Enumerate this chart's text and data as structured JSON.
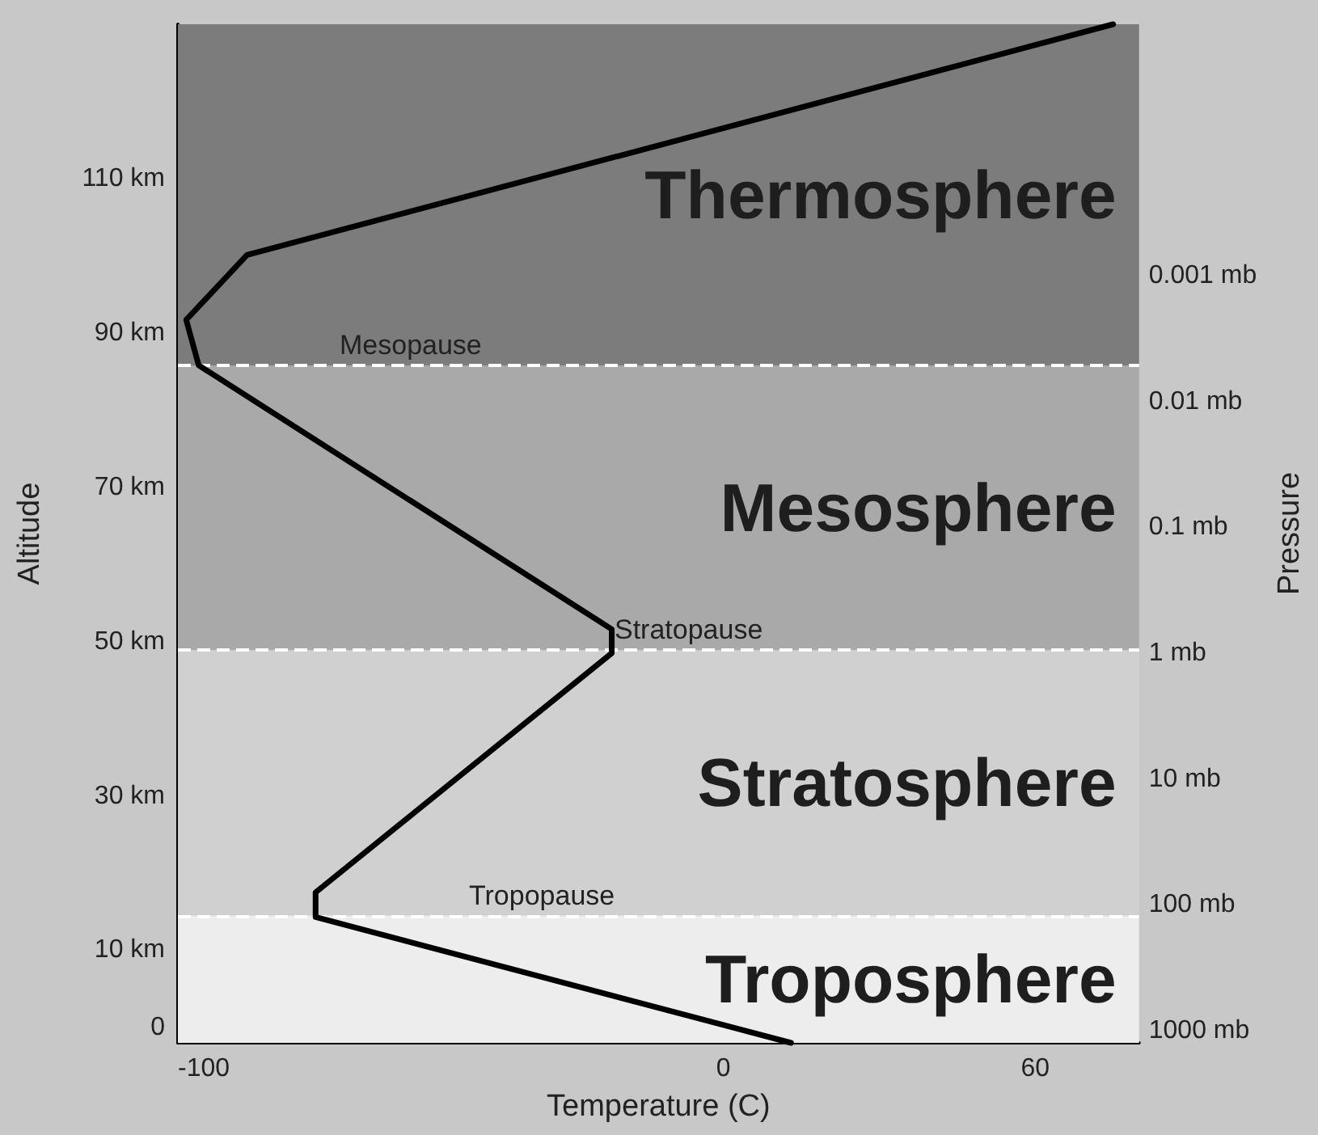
{
  "chart_data": {
    "type": "line",
    "xlabel": "Temperature (C)",
    "ylabel": "Altitude",
    "y2label": "Pressure",
    "x": [
      13,
      -78.5,
      -78.5,
      -21.5,
      -21.5,
      -101,
      -103.4,
      -91.7,
      75
    ],
    "series": [
      {
        "color": "#000000",
        "values": [
          -2,
          14.3,
          17.5,
          48.5,
          51.6,
          85.8,
          91.7,
          100.1,
          130
        ]
      }
    ],
    "xlim": [
      -105,
      80
    ],
    "xticks": [
      -100,
      0,
      60
    ],
    "ylim": [
      -2,
      130
    ],
    "yticks": [
      {
        "value": 0,
        "label": "0"
      },
      {
        "value": 10,
        "label": "10 km"
      },
      {
        "value": 30,
        "label": "30 km"
      },
      {
        "value": 50,
        "label": "50 km"
      },
      {
        "value": 70,
        "label": "70 km"
      },
      {
        "value": 90,
        "label": "90 km"
      },
      {
        "value": 110,
        "label": "110 km"
      }
    ],
    "log": "y2",
    "y2lim": [
      1250,
      1e-05
    ],
    "y2ticks": [
      {
        "value": 1000,
        "label": "1000 mb"
      },
      {
        "value": 100,
        "label": "100 mb"
      },
      {
        "value": 10,
        "label": "10 mb"
      },
      {
        "value": 1,
        "label": "1 mb"
      },
      {
        "value": 0.1,
        "label": "0.1 mb"
      },
      {
        "value": 0.01,
        "label": "0.01 mb"
      },
      {
        "value": 0.001,
        "label": "0.001 mb"
      }
    ],
    "ref_lines": [
      {
        "axis": "y",
        "value": 85.8,
        "label": "Mesopause",
        "line_style": "dashed",
        "color": "#ffffff"
      },
      {
        "axis": "y",
        "value": 48.9,
        "label": "Stratopause",
        "line_style": "dashed",
        "color": "#ffffff"
      },
      {
        "axis": "y",
        "value": 14.5,
        "label": "Tropopause",
        "line_style": "dashed",
        "color": "#ffffff"
      }
    ],
    "bands": [
      {
        "axis": "y",
        "from": 85.8,
        "to": 130,
        "label": "Thermosphere",
        "color": "#7c7c7c"
      },
      {
        "axis": "y",
        "from": 48.9,
        "to": 85.8,
        "label": "Mesosphere",
        "color": "#a9a9a9"
      },
      {
        "axis": "y",
        "from": 14.5,
        "to": 48.9,
        "label": "Stratosphere",
        "color": "#d0d0d0"
      },
      {
        "axis": "y",
        "from": -2,
        "to": 14.5,
        "label": "Troposphere",
        "color": "#ededed"
      }
    ],
    "marker": "none",
    "line_style": "solid"
  }
}
